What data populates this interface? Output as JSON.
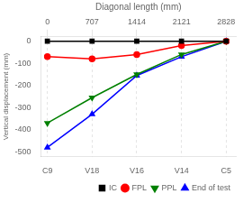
{
  "chart_data": {
    "type": "line",
    "xlabel": "Diagonal length (mm)",
    "ylabel": "Vertical displacement (mm)",
    "x": [
      0,
      707,
      1414,
      2121,
      2828
    ],
    "series": [
      {
        "name": "IC",
        "color": "#000000",
        "marker": "square",
        "values": [
          0,
          0,
          0,
          0,
          0
        ]
      },
      {
        "name": "FPL",
        "color": "#ff0000",
        "marker": "circle",
        "values": [
          -70,
          -80,
          -60,
          -20,
          0
        ]
      },
      {
        "name": "PPL",
        "color": "#008000",
        "marker": "triangle_down",
        "values": [
          -370,
          -255,
          -150,
          -60,
          0
        ]
      },
      {
        "name": "End of test",
        "color": "#0000ff",
        "marker": "triangle_up",
        "values": [
          -480,
          -330,
          -155,
          -70,
          0
        ]
      }
    ],
    "xlim": [
      -100,
      2980
    ],
    "xticks": [
      0,
      707,
      1414,
      2121,
      2828
    ],
    "ylim": [
      -520,
      20
    ],
    "yticks": [
      0,
      -100,
      -200,
      -300,
      -400,
      -500
    ],
    "grid": "x",
    "legend": "lower right",
    "annotations": [
      {
        "x": 0,
        "text": "C9"
      },
      {
        "x": 707,
        "text": "V18"
      },
      {
        "x": 1414,
        "text": "V16"
      },
      {
        "x": 2121,
        "text": "V14"
      },
      {
        "x": 2828,
        "text": "C5"
      }
    ]
  }
}
